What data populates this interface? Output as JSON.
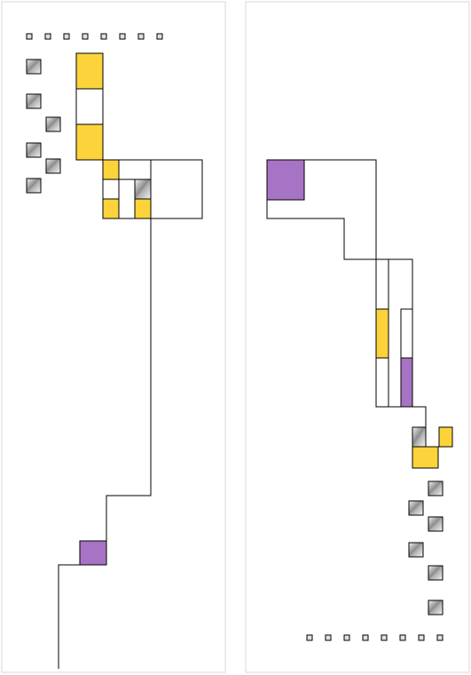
{
  "colors": {
    "background": "#ffffff",
    "panel_border": "#d9d9d9",
    "line": "#000000",
    "yellow": "#fcd33b",
    "purple": "#a773c4",
    "metal_light": "#f2f2f2",
    "metal_dark": "#8c8c8c",
    "dot_fill": "#e0e0e0"
  },
  "panels": [
    {
      "name": "left-panel"
    },
    {
      "name": "right-panel"
    }
  ],
  "icons": {
    "metal_tile": "metal-tile-icon",
    "dot": "dot-marker-icon"
  }
}
